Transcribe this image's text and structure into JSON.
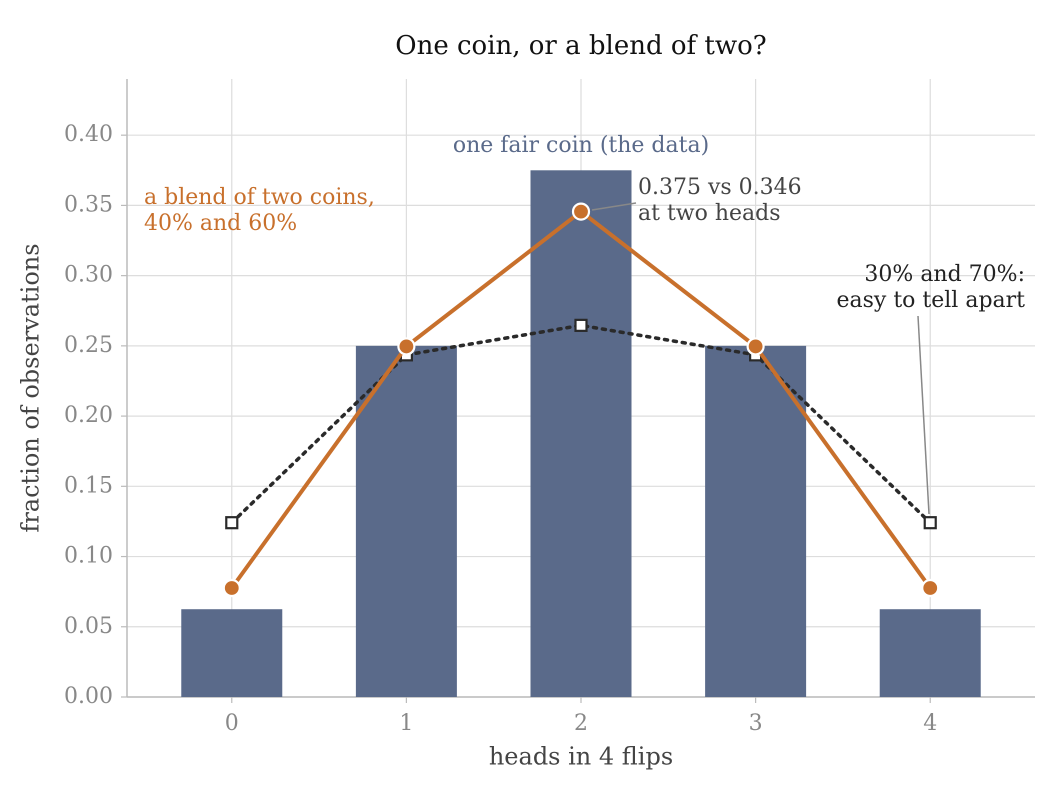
{
  "chart_data": {
    "type": "bar-line",
    "title": "One coin, or a blend of two?",
    "xlabel": "heads in 4 flips",
    "ylabel": "fraction of observations",
    "x": [
      0,
      1,
      2,
      3,
      4
    ],
    "xlim": [
      -0.6,
      4.6
    ],
    "xticks": [
      0,
      1,
      2,
      3,
      4
    ],
    "ylim": [
      0,
      0.44
    ],
    "yticks": [
      "0.00",
      "0.05",
      "0.10",
      "0.15",
      "0.20",
      "0.25",
      "0.30",
      "0.35",
      "0.40"
    ],
    "grid": true,
    "series": [
      {
        "kind": "bar",
        "color": "#5a6a8a",
        "values": [
          0.0625,
          0.25,
          0.375,
          0.25,
          0.0625
        ]
      },
      {
        "kind": "line",
        "color": "#c8702c",
        "values": [
          0.0776,
          0.2496,
          0.3456,
          0.2496,
          0.0776
        ]
      },
      {
        "kind": "dotted",
        "color": "#2a2a2a",
        "values": [
          0.1241,
          0.2436,
          0.2646,
          0.2436,
          0.1241
        ]
      }
    ],
    "annotations": [
      {
        "lines": [
          "one fair coin (the data)"
        ],
        "color": "#5a6a8a"
      },
      {
        "lines": [
          "a blend of two coins,",
          "40% and 60%"
        ],
        "color": "#c8702c"
      },
      {
        "lines": [
          "0.375 vs 0.346",
          "at two heads"
        ],
        "color": "#444444"
      },
      {
        "lines": [
          "30% and 70%:",
          "easy to tell apart"
        ],
        "color": "#222222"
      }
    ]
  }
}
